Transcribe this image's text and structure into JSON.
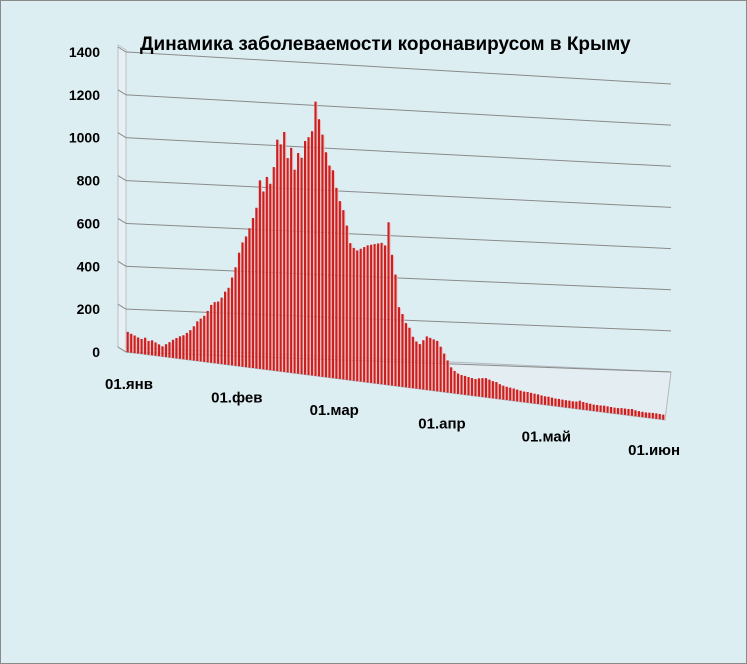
{
  "chart_data": {
    "type": "bar",
    "title": "Динамика заболеваемости коронавирусом в Крыму",
    "xlabel": "",
    "ylabel": "",
    "ylim": [
      0,
      1400
    ],
    "y_ticks": [
      0,
      200,
      400,
      600,
      800,
      1000,
      1200,
      1400
    ],
    "y_tick_labels": [
      "0",
      "200",
      "400",
      "600",
      "800",
      "1000",
      "1200",
      "1400"
    ],
    "x_tick_labels": [
      "01.янв",
      "01.фев",
      "01.мар",
      "01.апр",
      "01.май",
      "01.июн"
    ],
    "x_tick_day_index": [
      0,
      31,
      59,
      90,
      120,
      151
    ],
    "grid": true,
    "legend": "none",
    "bar_color": "#cc2020",
    "values": [
      95,
      88,
      82,
      75,
      70,
      78,
      65,
      70,
      62,
      55,
      48,
      60,
      72,
      85,
      95,
      105,
      112,
      125,
      140,
      160,
      185,
      200,
      215,
      240,
      270,
      285,
      290,
      310,
      340,
      360,
      410,
      460,
      530,
      580,
      610,
      650,
      700,
      750,
      880,
      830,
      900,
      870,
      950,
      1080,
      1060,
      1120,
      1000,
      1050,
      950,
      1030,
      1010,
      1090,
      1110,
      1140,
      1280,
      1200,
      1130,
      1050,
      990,
      970,
      890,
      830,
      790,
      720,
      640,
      620,
      610,
      620,
      630,
      640,
      645,
      650,
      655,
      660,
      650,
      760,
      610,
      520,
      370,
      340,
      300,
      280,
      240,
      220,
      210,
      230,
      250,
      245,
      240,
      235,
      210,
      180,
      150,
      120,
      105,
      95,
      90,
      88,
      85,
      82,
      80,
      85,
      88,
      90,
      85,
      80,
      78,
      70,
      65,
      62,
      60,
      58,
      55,
      52,
      50,
      50,
      48,
      46,
      45,
      42,
      40,
      40,
      38,
      36,
      36,
      35,
      34,
      34,
      33,
      34,
      40,
      36,
      34,
      32,
      30,
      30,
      30,
      31,
      30,
      29,
      28,
      28,
      30,
      30,
      30,
      32,
      28,
      26,
      25,
      24,
      25,
      26,
      26,
      25,
      24
    ]
  }
}
